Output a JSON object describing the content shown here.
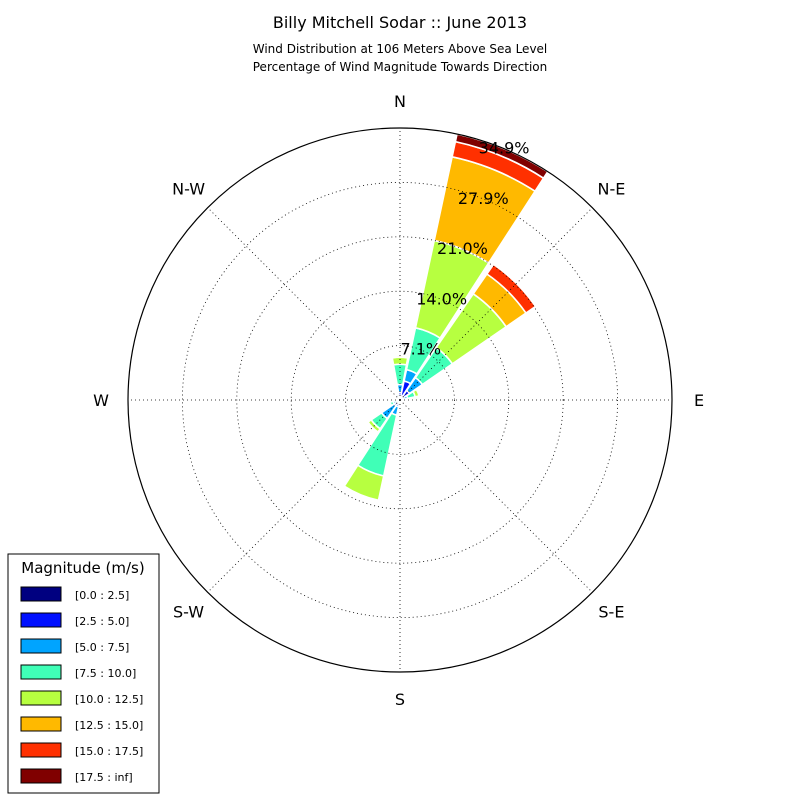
{
  "chart_data": {
    "type": "windrose",
    "title": "Billy Mitchell Sodar :: June 2013",
    "subtitle_lines": [
      "Wind Distribution at 106 Meters Above Sea Level",
      "Percentage of Wind Magnitude Towards Direction"
    ],
    "directions": [
      "N",
      "N-E",
      "E",
      "S-E",
      "S",
      "S-W",
      "W",
      "N-W"
    ],
    "radial_ticks": [
      "7.1%",
      "14.0%",
      "21.0%",
      "27.9%",
      "34.9%"
    ],
    "radial_tick_values": [
      7,
      14,
      21,
      28,
      35
    ],
    "rmax": 35,
    "grid": true,
    "legend": {
      "title": "Magnitude (m/s)",
      "position": "lower-left",
      "bins": [
        {
          "label": "[0.0 : 2.5]",
          "color": "#000080"
        },
        {
          "label": "[2.5 : 5.0]",
          "color": "#0010ff"
        },
        {
          "label": "[5.0 : 7.5]",
          "color": "#00a4ff"
        },
        {
          "label": "[7.5 : 10.0]",
          "color": "#40ffb7"
        },
        {
          "label": "[10.0 : 12.5]",
          "color": "#b7ff40"
        },
        {
          "label": "[12.5 : 15.0]",
          "color": "#ffb900"
        },
        {
          "label": "[15.0 : 17.5]",
          "color": "#ff3000"
        },
        {
          "label": "[17.5 : inf]",
          "color": "#800000"
        }
      ]
    },
    "sectors": [
      {
        "dir_deg": 0,
        "cumulative": [
          0.1,
          1.0,
          2.0,
          4.6,
          5.5,
          5.7,
          5.7,
          5.7
        ]
      },
      {
        "dir_deg": 22.5,
        "cumulative": [
          0.1,
          2.5,
          4.0,
          9.5,
          21.0,
          32.0,
          34.0,
          35.0
        ]
      },
      {
        "dir_deg": 45,
        "cumulative": [
          0.1,
          1.5,
          3.5,
          8.2,
          16.6,
          19.7,
          21.2,
          21.2
        ]
      },
      {
        "dir_deg": 67.5,
        "cumulative": [
          0.1,
          0.5,
          1.0,
          2.0,
          2.5,
          2.5,
          2.5,
          2.5
        ]
      },
      {
        "dir_deg": 90,
        "cumulative": [
          0.1,
          0.2,
          0.3,
          0.4,
          0.4,
          0.4,
          0.4,
          0.4
        ]
      },
      {
        "dir_deg": 112.5,
        "cumulative": [
          0.0,
          0.1,
          0.2,
          0.2,
          0.2,
          0.2,
          0.2,
          0.2
        ]
      },
      {
        "dir_deg": 135,
        "cumulative": [
          0.0,
          0.1,
          0.2,
          0.3,
          0.3,
          0.3,
          0.3,
          0.3
        ]
      },
      {
        "dir_deg": 157.5,
        "cumulative": [
          0.1,
          0.3,
          0.5,
          0.7,
          0.8,
          0.8,
          0.8,
          0.8
        ]
      },
      {
        "dir_deg": 180,
        "cumulative": [
          0.1,
          0.3,
          0.6,
          0.8,
          0.8,
          0.8,
          0.8,
          0.8
        ]
      },
      {
        "dir_deg": 202.5,
        "cumulative": [
          0.1,
          0.9,
          2.0,
          10.0,
          13.2,
          13.2,
          13.2,
          13.2
        ]
      },
      {
        "dir_deg": 225,
        "cumulative": [
          0.1,
          0.9,
          2.9,
          4.5,
          5.0,
          5.0,
          5.0,
          5.0
        ]
      },
      {
        "dir_deg": 247.5,
        "cumulative": [
          0.1,
          0.4,
          0.9,
          1.3,
          1.3,
          1.3,
          1.3,
          1.3
        ]
      },
      {
        "dir_deg": 270,
        "cumulative": [
          0.1,
          0.3,
          0.4,
          0.5,
          0.5,
          0.5,
          0.5,
          0.5
        ]
      },
      {
        "dir_deg": 292.5,
        "cumulative": [
          0.1,
          0.2,
          0.3,
          0.4,
          0.5,
          0.5,
          0.5,
          0.5
        ]
      },
      {
        "dir_deg": 315,
        "cumulative": [
          0.1,
          0.5,
          0.6,
          0.7,
          0.8,
          0.8,
          0.8,
          0.8
        ]
      },
      {
        "dir_deg": 337.5,
        "cumulative": [
          0.1,
          0.5,
          0.8,
          1.0,
          1.2,
          1.3,
          1.5,
          1.6
        ]
      }
    ]
  }
}
